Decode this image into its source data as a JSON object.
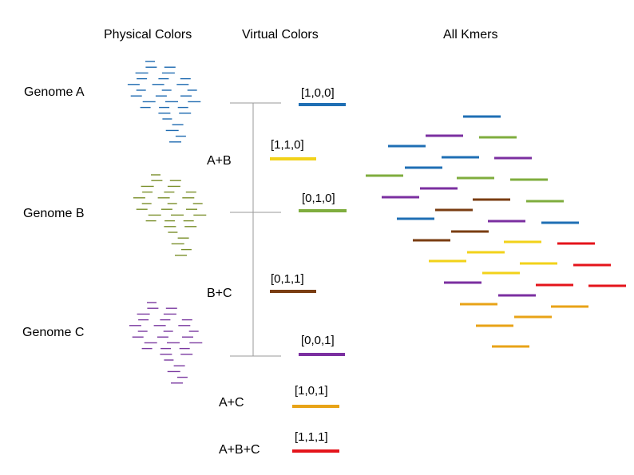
{
  "headers": {
    "physical": "Physical Colors",
    "virtual": "Virtual Colors",
    "all": "All Kmers"
  },
  "genomes": [
    {
      "label": "Genome A",
      "color": "#1e6ab0"
    },
    {
      "label": "Genome B",
      "color": "#7a8f2a"
    },
    {
      "label": "Genome C",
      "color": "#7b3aa0"
    }
  ],
  "combos": [
    "A+B",
    "B+C",
    "A+C",
    "A+B+C"
  ],
  "virtual_colors": [
    {
      "code": "[1,0,0]",
      "color": "#1f6fb4"
    },
    {
      "code": "[1,1,0]",
      "color": "#f2d21a"
    },
    {
      "code": "[0,1,0]",
      "color": "#7fad3e"
    },
    {
      "code": "[0,1,1]",
      "color": "#7a3d12"
    },
    {
      "code": "[0,0,1]",
      "color": "#7b2fa0"
    },
    {
      "code": "[1,0,1]",
      "color": "#e8a317"
    },
    {
      "code": "[1,1,1]",
      "color": "#e4141b"
    }
  ]
}
